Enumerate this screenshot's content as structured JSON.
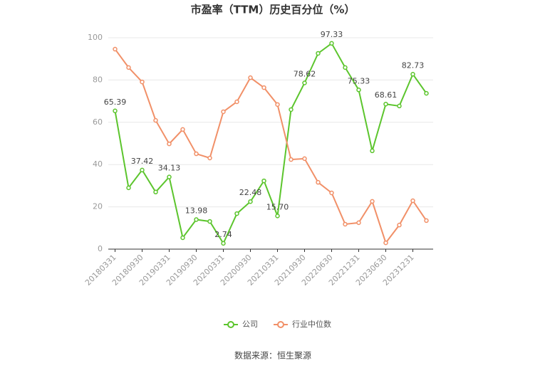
{
  "chart_data": {
    "type": "line",
    "title": "市盈率（TTM）历史百分位（%）",
    "categories": [
      "20180331",
      null,
      "20180930",
      null,
      "20190331",
      null,
      "20190930",
      null,
      "20200331",
      null,
      "20200930",
      null,
      "20210331",
      null,
      "20210930",
      null,
      "20220630",
      null,
      "20221231",
      null,
      "20230630",
      null,
      "20231231",
      null
    ],
    "series": [
      {
        "name": "公司",
        "color": "#5cc52d",
        "values": [
          65.39,
          29,
          37.42,
          27,
          34.13,
          5.4,
          13.98,
          13.1,
          2.74,
          16.8,
          22.48,
          32.3,
          15.7,
          66,
          78.62,
          92.6,
          97.33,
          85.9,
          75.33,
          46.5,
          68.61,
          67.7,
          82.73,
          73.7
        ],
        "value_labels": [
          "65.39",
          null,
          "37.42",
          null,
          "34.13",
          null,
          "13.98",
          null,
          "2.74",
          null,
          "22.48",
          null,
          "15.70",
          null,
          "78.62",
          null,
          "97.33",
          null,
          "75.33",
          null,
          "68.61",
          null,
          "82.73",
          null
        ]
      },
      {
        "name": "行业中位数",
        "color": "#f19068",
        "values": [
          94.6,
          85.9,
          79.1,
          60.9,
          49.8,
          56.6,
          45.1,
          43.1,
          65,
          69.7,
          81.1,
          76.4,
          68.4,
          42.4,
          42.8,
          31.6,
          26.6,
          11.8,
          12.5,
          22.6,
          3,
          11.4,
          22.9,
          13.5
        ]
      }
    ],
    "ylim": [
      0,
      100
    ],
    "yticks": [
      0,
      20,
      40,
      60,
      80,
      100
    ],
    "grid": true,
    "source": "数据来源：恒生聚源"
  }
}
